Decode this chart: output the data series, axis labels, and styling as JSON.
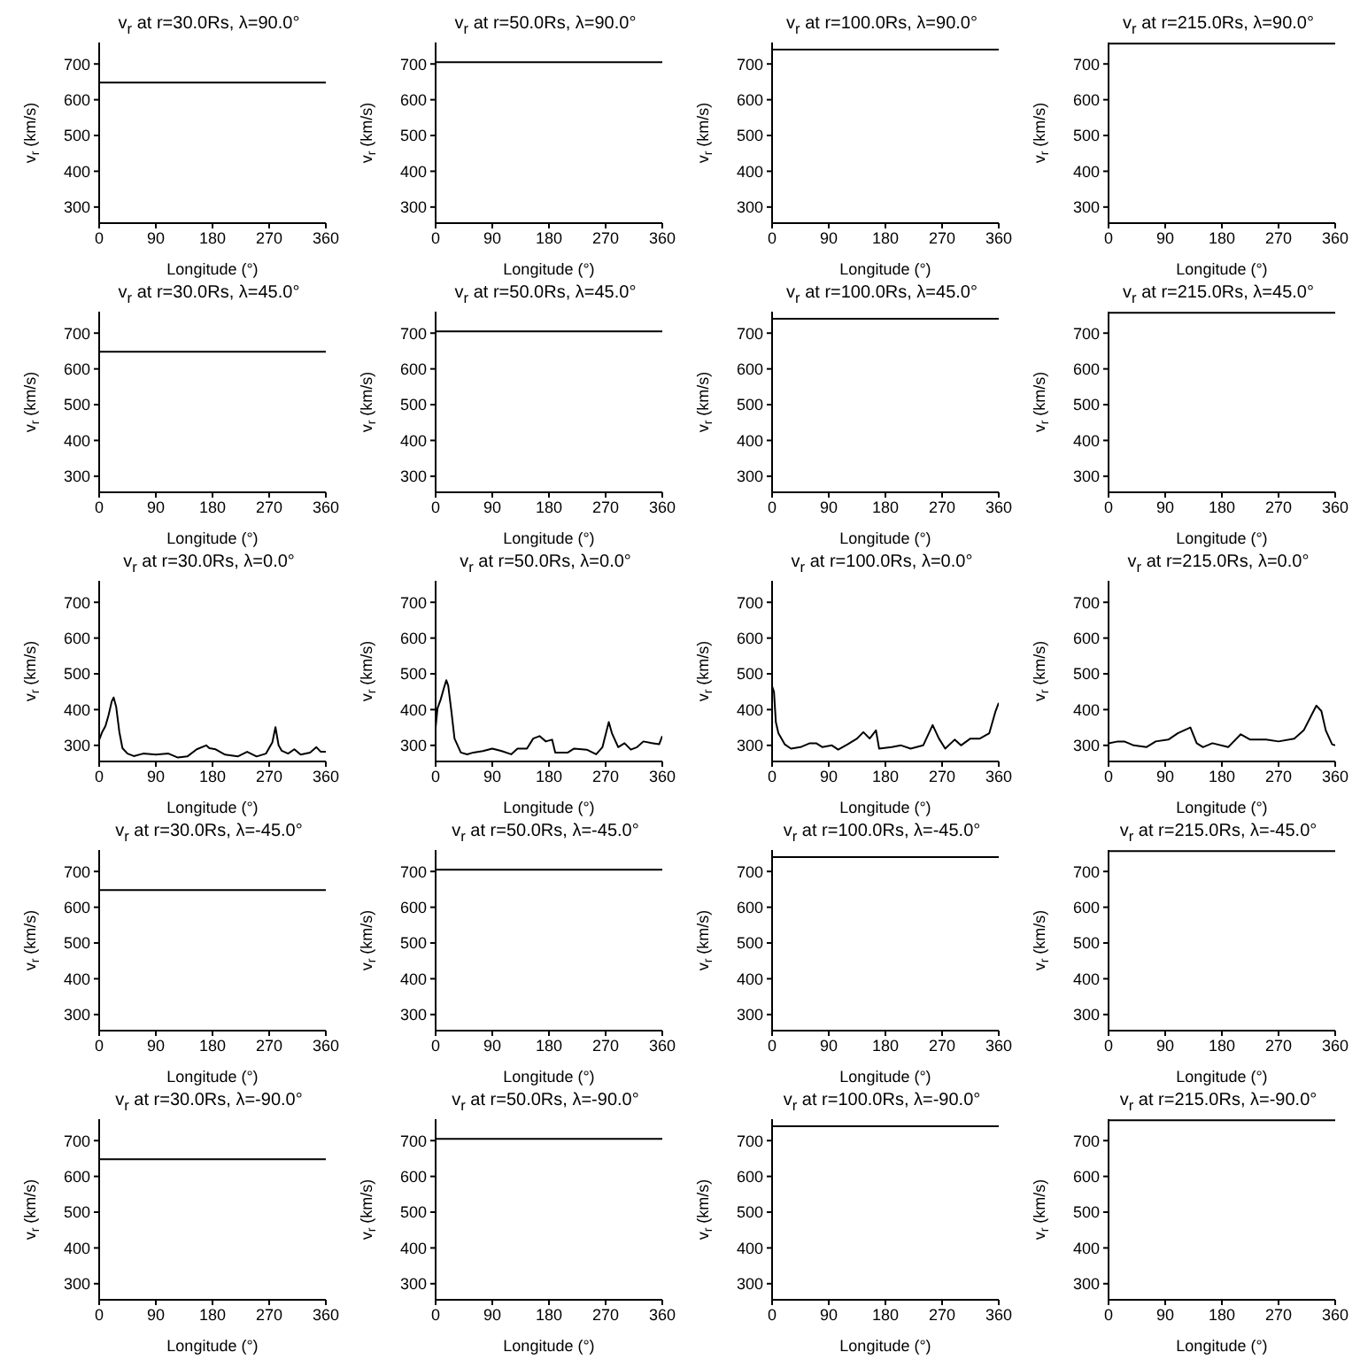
{
  "chart_data": [
    {
      "type": "line",
      "title": "v$_{r}$ at r=30.0Rs, λ=90.0°",
      "xlabel": "Longitude (°)",
      "ylabel": "v$_{r}$ (km/s)",
      "x": [
        0,
        360
      ],
      "values": [
        648,
        648
      ],
      "color": "#000000",
      "xlim": [
        0,
        360
      ],
      "xticks": [
        0,
        90,
        180,
        270,
        360
      ],
      "ylim": [
        255,
        760
      ],
      "yticks": [
        300,
        400,
        500,
        600,
        700
      ]
    },
    {
      "type": "line",
      "title": "v$_{r}$ at r=50.0Rs, λ=90.0°",
      "xlabel": "Longitude (°)",
      "ylabel": "v$_{r}$ (km/s)",
      "x": [
        0,
        360
      ],
      "values": [
        705,
        705
      ],
      "color": "#000000",
      "xlim": [
        0,
        360
      ],
      "xticks": [
        0,
        90,
        180,
        270,
        360
      ],
      "ylim": [
        255,
        760
      ],
      "yticks": [
        300,
        400,
        500,
        600,
        700
      ]
    },
    {
      "type": "line",
      "title": "v$_{r}$ at r=100.0Rs, λ=90.0°",
      "xlabel": "Longitude (°)",
      "ylabel": "v$_{r}$ (km/s)",
      "x": [
        0,
        360
      ],
      "values": [
        740,
        740
      ],
      "color": "#000000",
      "xlim": [
        0,
        360
      ],
      "xticks": [
        0,
        90,
        180,
        270,
        360
      ],
      "ylim": [
        255,
        760
      ],
      "yticks": [
        300,
        400,
        500,
        600,
        700
      ]
    },
    {
      "type": "line",
      "title": "v$_{r}$ at r=215.0Rs, λ=90.0°",
      "xlabel": "Longitude (°)",
      "ylabel": "v$_{r}$ (km/s)",
      "x": [
        0,
        360
      ],
      "values": [
        757,
        757
      ],
      "color": "#000000",
      "xlim": [
        0,
        360
      ],
      "xticks": [
        0,
        90,
        180,
        270,
        360
      ],
      "ylim": [
        255,
        760
      ],
      "yticks": [
        300,
        400,
        500,
        600,
        700
      ]
    },
    {
      "type": "line",
      "title": "v$_{r}$ at r=30.0Rs, λ=45.0°",
      "xlabel": "Longitude (°)",
      "ylabel": "v$_{r}$ (km/s)",
      "x": [
        0,
        360
      ],
      "values": [
        648,
        648
      ],
      "color": "#000000",
      "xlim": [
        0,
        360
      ],
      "xticks": [
        0,
        90,
        180,
        270,
        360
      ],
      "ylim": [
        255,
        760
      ],
      "yticks": [
        300,
        400,
        500,
        600,
        700
      ]
    },
    {
      "type": "line",
      "title": "v$_{r}$ at r=50.0Rs, λ=45.0°",
      "xlabel": "Longitude (°)",
      "ylabel": "v$_{r}$ (km/s)",
      "x": [
        0,
        360
      ],
      "values": [
        705,
        705
      ],
      "color": "#000000",
      "xlim": [
        0,
        360
      ],
      "xticks": [
        0,
        90,
        180,
        270,
        360
      ],
      "ylim": [
        255,
        760
      ],
      "yticks": [
        300,
        400,
        500,
        600,
        700
      ]
    },
    {
      "type": "line",
      "title": "v$_{r}$ at r=100.0Rs, λ=45.0°",
      "xlabel": "Longitude (°)",
      "ylabel": "v$_{r}$ (km/s)",
      "x": [
        0,
        360
      ],
      "values": [
        740,
        740
      ],
      "color": "#000000",
      "xlim": [
        0,
        360
      ],
      "xticks": [
        0,
        90,
        180,
        270,
        360
      ],
      "ylim": [
        255,
        760
      ],
      "yticks": [
        300,
        400,
        500,
        600,
        700
      ]
    },
    {
      "type": "line",
      "title": "v$_{r}$ at r=215.0Rs, λ=45.0°",
      "xlabel": "Longitude (°)",
      "ylabel": "v$_{r}$ (km/s)",
      "x": [
        0,
        360
      ],
      "values": [
        757,
        757
      ],
      "color": "#000000",
      "xlim": [
        0,
        360
      ],
      "xticks": [
        0,
        90,
        180,
        270,
        360
      ],
      "ylim": [
        255,
        760
      ],
      "yticks": [
        300,
        400,
        500,
        600,
        700
      ]
    },
    {
      "type": "line",
      "title": "v$_{r}$ at r=30.0Rs, λ=0.0°",
      "xlabel": "Longitude (°)",
      "ylabel": "v$_{r}$ (km/s)",
      "x": [
        0,
        5,
        10,
        15,
        20,
        23,
        27,
        32,
        37,
        45,
        55,
        70,
        90,
        110,
        125,
        140,
        155,
        170,
        175,
        185,
        200,
        220,
        235,
        250,
        265,
        275,
        280,
        285,
        290,
        300,
        310,
        320,
        335,
        345,
        352,
        360
      ],
      "values": [
        315,
        338,
        354,
        385,
        423,
        434,
        408,
        338,
        292,
        277,
        270,
        277,
        274,
        277,
        266,
        269,
        289,
        300,
        292,
        289,
        274,
        269,
        282,
        269,
        277,
        308,
        351,
        300,
        285,
        277,
        289,
        274,
        280,
        295,
        282,
        282
      ],
      "color": "#000000",
      "xlim": [
        0,
        360
      ],
      "xticks": [
        0,
        90,
        180,
        270,
        360
      ],
      "ylim": [
        255,
        760
      ],
      "yticks": [
        300,
        400,
        500,
        600,
        700
      ]
    },
    {
      "type": "line",
      "title": "v$_{r}$ at r=50.0Rs, λ=0.0°",
      "xlabel": "Longitude (°)",
      "ylabel": "v$_{r}$ (km/s)",
      "x": [
        0,
        3,
        8,
        13,
        17,
        20,
        25,
        30,
        40,
        50,
        60,
        75,
        90,
        105,
        120,
        130,
        145,
        155,
        165,
        175,
        185,
        190,
        210,
        220,
        240,
        255,
        265,
        275,
        280,
        290,
        300,
        310,
        320,
        330,
        345,
        355,
        360
      ],
      "values": [
        350,
        404,
        428,
        459,
        482,
        467,
        396,
        319,
        280,
        275,
        280,
        284,
        291,
        284,
        275,
        291,
        291,
        319,
        326,
        311,
        316,
        280,
        280,
        291,
        288,
        275,
        295,
        365,
        334,
        295,
        306,
        288,
        295,
        311,
        306,
        303,
        326
      ],
      "color": "#000000",
      "xlim": [
        0,
        360
      ],
      "xticks": [
        0,
        90,
        180,
        270,
        360
      ],
      "ylim": [
        255,
        760
      ],
      "yticks": [
        300,
        400,
        500,
        600,
        700
      ]
    },
    {
      "type": "line",
      "title": "v$_{r}$ at r=100.0Rs, λ=0.0°",
      "xlabel": "Longitude (°)",
      "ylabel": "v$_{r}$ (km/s)",
      "x": [
        0,
        3,
        6,
        10,
        20,
        30,
        45,
        60,
        70,
        80,
        95,
        105,
        120,
        135,
        145,
        155,
        165,
        170,
        190,
        205,
        220,
        240,
        255,
        265,
        275,
        290,
        300,
        315,
        330,
        345,
        355,
        360
      ],
      "values": [
        465,
        450,
        365,
        334,
        303,
        291,
        295,
        306,
        306,
        295,
        300,
        288,
        303,
        319,
        337,
        319,
        342,
        291,
        295,
        300,
        291,
        300,
        357,
        319,
        291,
        316,
        300,
        319,
        319,
        334,
        396,
        419
      ],
      "color": "#000000",
      "xlim": [
        0,
        360
      ],
      "xticks": [
        0,
        90,
        180,
        270,
        360
      ],
      "ylim": [
        255,
        760
      ],
      "yticks": [
        300,
        400,
        500,
        600,
        700
      ]
    },
    {
      "type": "line",
      "title": "v$_{r}$ at r=215.0Rs, λ=0.0°",
      "xlabel": "Longitude (°)",
      "ylabel": "v$_{r}$ (km/s)",
      "x": [
        0,
        15,
        25,
        40,
        60,
        75,
        95,
        110,
        130,
        140,
        150,
        165,
        190,
        210,
        225,
        250,
        270,
        295,
        310,
        330,
        338,
        345,
        355,
        360
      ],
      "values": [
        306,
        311,
        311,
        300,
        295,
        311,
        316,
        334,
        350,
        306,
        295,
        306,
        295,
        331,
        316,
        316,
        311,
        319,
        342,
        411,
        396,
        342,
        303,
        300
      ],
      "color": "#000000",
      "xlim": [
        0,
        360
      ],
      "xticks": [
        0,
        90,
        180,
        270,
        360
      ],
      "ylim": [
        255,
        760
      ],
      "yticks": [
        300,
        400,
        500,
        600,
        700
      ]
    },
    {
      "type": "line",
      "title": "v$_{r}$ at r=30.0Rs, λ=-45.0°",
      "xlabel": "Longitude (°)",
      "ylabel": "v$_{r}$ (km/s)",
      "x": [
        0,
        360
      ],
      "values": [
        648,
        648
      ],
      "color": "#000000",
      "xlim": [
        0,
        360
      ],
      "xticks": [
        0,
        90,
        180,
        270,
        360
      ],
      "ylim": [
        255,
        760
      ],
      "yticks": [
        300,
        400,
        500,
        600,
        700
      ]
    },
    {
      "type": "line",
      "title": "v$_{r}$ at r=50.0Rs, λ=-45.0°",
      "xlabel": "Longitude (°)",
      "ylabel": "v$_{r}$ (km/s)",
      "x": [
        0,
        360
      ],
      "values": [
        705,
        705
      ],
      "color": "#000000",
      "xlim": [
        0,
        360
      ],
      "xticks": [
        0,
        90,
        180,
        270,
        360
      ],
      "ylim": [
        255,
        760
      ],
      "yticks": [
        300,
        400,
        500,
        600,
        700
      ]
    },
    {
      "type": "line",
      "title": "v$_{r}$ at r=100.0Rs, λ=-45.0°",
      "xlabel": "Longitude (°)",
      "ylabel": "v$_{r}$ (km/s)",
      "x": [
        0,
        360
      ],
      "values": [
        740,
        740
      ],
      "color": "#000000",
      "xlim": [
        0,
        360
      ],
      "xticks": [
        0,
        90,
        180,
        270,
        360
      ],
      "ylim": [
        255,
        760
      ],
      "yticks": [
        300,
        400,
        500,
        600,
        700
      ]
    },
    {
      "type": "line",
      "title": "v$_{r}$ at r=215.0Rs, λ=-45.0°",
      "xlabel": "Longitude (°)",
      "ylabel": "v$_{r}$ (km/s)",
      "x": [
        0,
        360
      ],
      "values": [
        757,
        757
      ],
      "color": "#000000",
      "xlim": [
        0,
        360
      ],
      "xticks": [
        0,
        90,
        180,
        270,
        360
      ],
      "ylim": [
        255,
        760
      ],
      "yticks": [
        300,
        400,
        500,
        600,
        700
      ]
    },
    {
      "type": "line",
      "title": "v$_{r}$ at r=30.0Rs, λ=-90.0°",
      "xlabel": "Longitude (°)",
      "ylabel": "v$_{r}$ (km/s)",
      "x": [
        0,
        360
      ],
      "values": [
        648,
        648
      ],
      "color": "#000000",
      "xlim": [
        0,
        360
      ],
      "xticks": [
        0,
        90,
        180,
        270,
        360
      ],
      "ylim": [
        255,
        760
      ],
      "yticks": [
        300,
        400,
        500,
        600,
        700
      ]
    },
    {
      "type": "line",
      "title": "v$_{r}$ at r=50.0Rs, λ=-90.0°",
      "xlabel": "Longitude (°)",
      "ylabel": "v$_{r}$ (km/s)",
      "x": [
        0,
        360
      ],
      "values": [
        705,
        705
      ],
      "color": "#000000",
      "xlim": [
        0,
        360
      ],
      "xticks": [
        0,
        90,
        180,
        270,
        360
      ],
      "ylim": [
        255,
        760
      ],
      "yticks": [
        300,
        400,
        500,
        600,
        700
      ]
    },
    {
      "type": "line",
      "title": "v$_{r}$ at r=100.0Rs, λ=-90.0°",
      "xlabel": "Longitude (°)",
      "ylabel": "v$_{r}$ (km/s)",
      "x": [
        0,
        360
      ],
      "values": [
        740,
        740
      ],
      "color": "#000000",
      "xlim": [
        0,
        360
      ],
      "xticks": [
        0,
        90,
        180,
        270,
        360
      ],
      "ylim": [
        255,
        760
      ],
      "yticks": [
        300,
        400,
        500,
        600,
        700
      ]
    },
    {
      "type": "line",
      "title": "v$_{r}$ at r=215.0Rs, λ=-90.0°",
      "xlabel": "Longitude (°)",
      "ylabel": "v$_{r}$ (km/s)",
      "x": [
        0,
        360
      ],
      "values": [
        757,
        757
      ],
      "color": "#000000",
      "xlim": [
        0,
        360
      ],
      "xticks": [
        0,
        90,
        180,
        270,
        360
      ],
      "ylim": [
        255,
        760
      ],
      "yticks": [
        300,
        400,
        500,
        600,
        700
      ]
    }
  ]
}
